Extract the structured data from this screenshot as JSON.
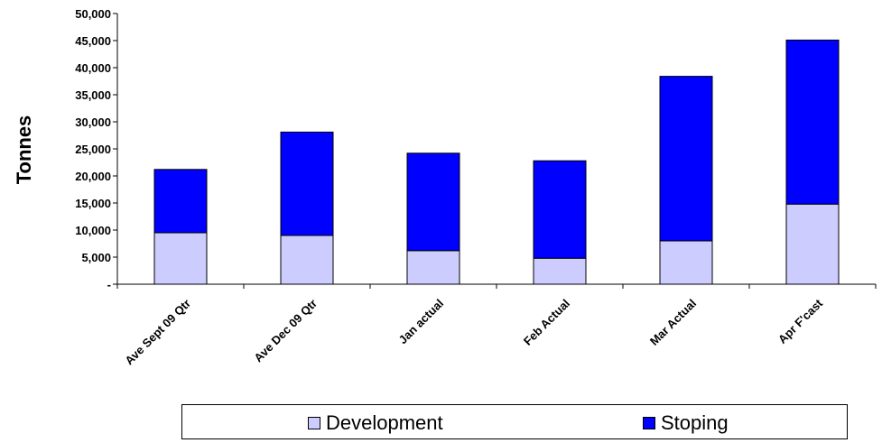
{
  "chart_data": {
    "type": "bar",
    "stacked": true,
    "ylabel": "Tonnes",
    "xlabel": "",
    "ylim": [
      0,
      50000
    ],
    "y_ticks": [
      {
        "value": 0,
        "label": "-"
      },
      {
        "value": 5000,
        "label": "5,000"
      },
      {
        "value": 10000,
        "label": "10,000"
      },
      {
        "value": 15000,
        "label": "15,000"
      },
      {
        "value": 20000,
        "label": "20,000"
      },
      {
        "value": 25000,
        "label": "25,000"
      },
      {
        "value": 30000,
        "label": "30,000"
      },
      {
        "value": 35000,
        "label": "35,000"
      },
      {
        "value": 40000,
        "label": "40,000"
      },
      {
        "value": 45000,
        "label": "45,000"
      },
      {
        "value": 50000,
        "label": "50,000"
      }
    ],
    "categories": [
      "Ave Sept 09 Qtr",
      "Ave Dec 09 Qtr",
      "Jan actual",
      "Feb Actual",
      "Mar Actual",
      "Apr F'cast"
    ],
    "series": [
      {
        "name": "Development",
        "color": "#ccccff",
        "values": [
          9500,
          9000,
          6200,
          4800,
          8000,
          14800
        ]
      },
      {
        "name": "Stoping",
        "color": "#0000ff",
        "values": [
          11700,
          19100,
          18000,
          18000,
          30400,
          30300
        ]
      }
    ],
    "legend_position": "bottom",
    "grid": false
  }
}
